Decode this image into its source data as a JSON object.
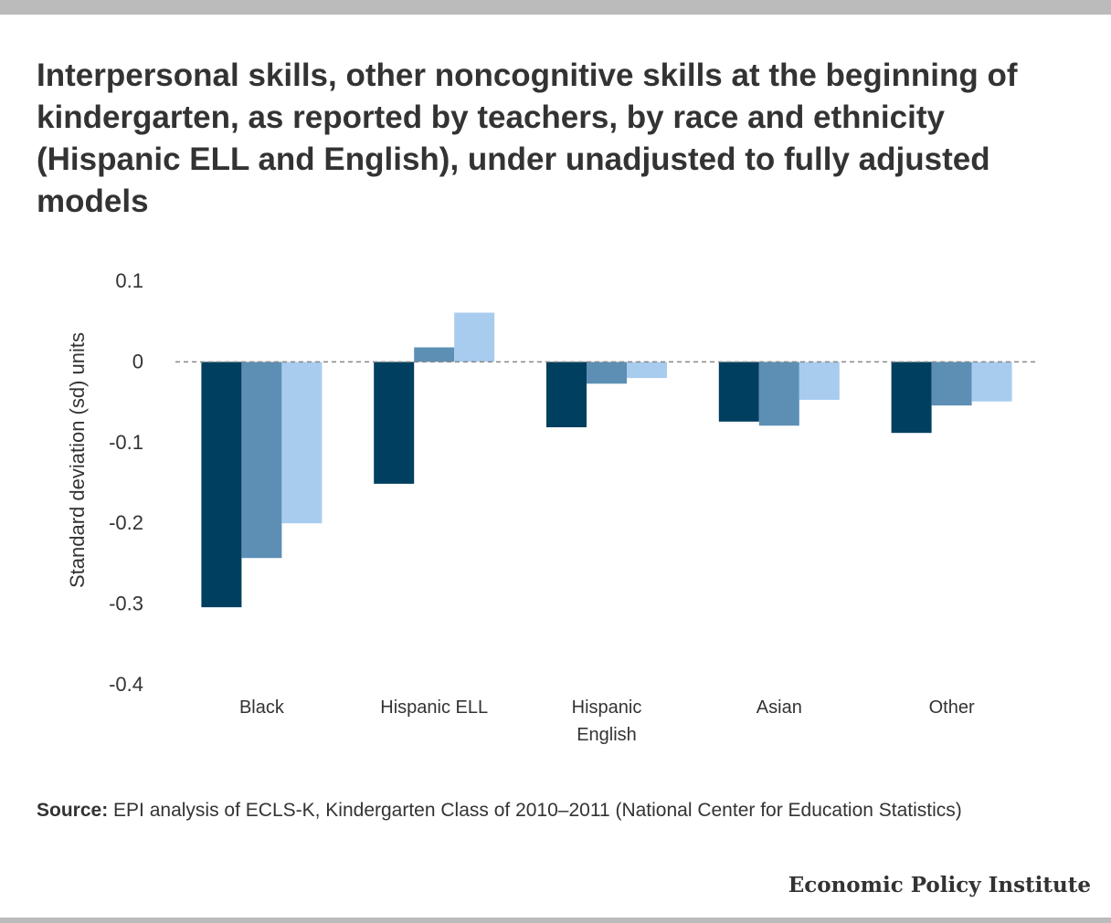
{
  "title": "Interpersonal skills, other noncognitive skills at the beginning of kindergarten, as reported by teachers, by race and ethnicity (Hispanic ELL and English), under unadjusted to fully adjusted models",
  "source_label": "Source:",
  "source_text": "EPI analysis of ECLS-K, Kindergarten Class of 2010–2011 (National Center for Education Statistics)",
  "organization": "Economic Policy Institute",
  "colors": {
    "series": [
      "#003f5f",
      "#5d8fb5",
      "#a8ccee"
    ],
    "zero_line": "#888888",
    "text": "#333333",
    "frame": "#bbbbbb"
  },
  "chart_data": {
    "type": "bar",
    "categories": [
      [
        "Black"
      ],
      [
        "Hispanic ELL"
      ],
      [
        "Hispanic",
        "English"
      ],
      [
        "Asian"
      ],
      [
        "Other"
      ]
    ],
    "series": [
      {
        "values": [
          -0.304,
          -0.151,
          -0.081,
          -0.074,
          -0.088
        ]
      },
      {
        "values": [
          -0.243,
          0.018,
          -0.027,
          -0.079,
          -0.054
        ]
      },
      {
        "values": [
          -0.2,
          0.061,
          -0.02,
          -0.047,
          -0.049
        ]
      }
    ],
    "ylabel": "Standard deviation (sd) units",
    "ylim": [
      -0.4,
      0.1
    ],
    "yticks": [
      0.1,
      0,
      -0.1,
      -0.2,
      -0.3,
      -0.4
    ],
    "ytick_labels": [
      "0.1",
      "0",
      "-0.1",
      "-0.2",
      "-0.3",
      "-0.4"
    ],
    "zero_line": "dashed",
    "grid": false,
    "legend": "none"
  }
}
